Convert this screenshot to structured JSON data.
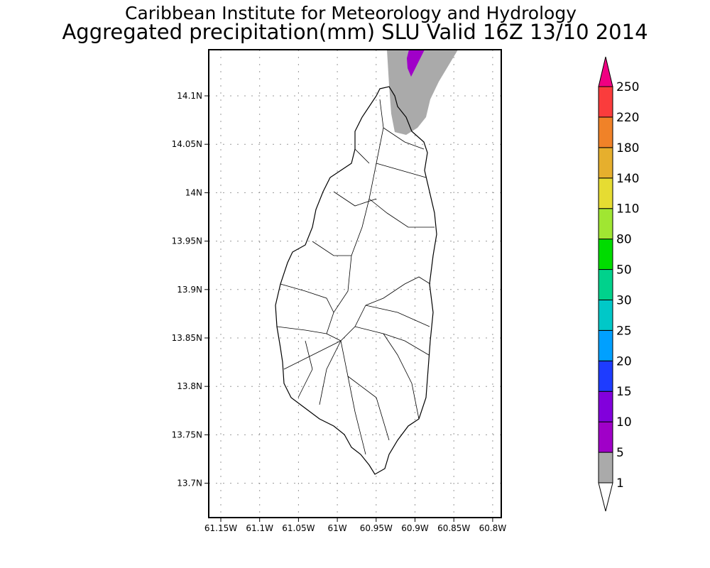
{
  "header": {
    "title": "Caribbean Institute for Meteorology and Hydrology",
    "subtitle": "Aggregated precipitation(mm) SLU Valid 16Z 13/10 2014"
  },
  "map": {
    "lon_ticks": [
      "61.15W",
      "61.1W",
      "61.05W",
      "61W",
      "60.95W",
      "60.9W",
      "60.85W",
      "60.8W"
    ],
    "lat_ticks": [
      "14.1N",
      "14.05N",
      "14N",
      "13.95N",
      "13.9N",
      "13.85N",
      "13.8N",
      "13.75N",
      "13.7N"
    ],
    "gridlines": true
  },
  "colorbar": {
    "levels": [
      "1",
      "5",
      "10",
      "15",
      "20",
      "25",
      "30",
      "50",
      "80",
      "110",
      "140",
      "180",
      "220",
      "250"
    ],
    "colors": [
      "#aaaaaa",
      "#a000c8",
      "#8200dc",
      "#1e3cff",
      "#00a0ff",
      "#00c8c8",
      "#00d28c",
      "#00dc00",
      "#a0e632",
      "#e6dc32",
      "#e6af2d",
      "#f08228",
      "#fa3c3c",
      "#f00082"
    ],
    "below_color": "#ffffff"
  },
  "precipitation_shading": [
    {
      "range": "1-5",
      "color": "#aaaaaa"
    },
    {
      "range": "5-10",
      "color": "#a000c8"
    }
  ]
}
